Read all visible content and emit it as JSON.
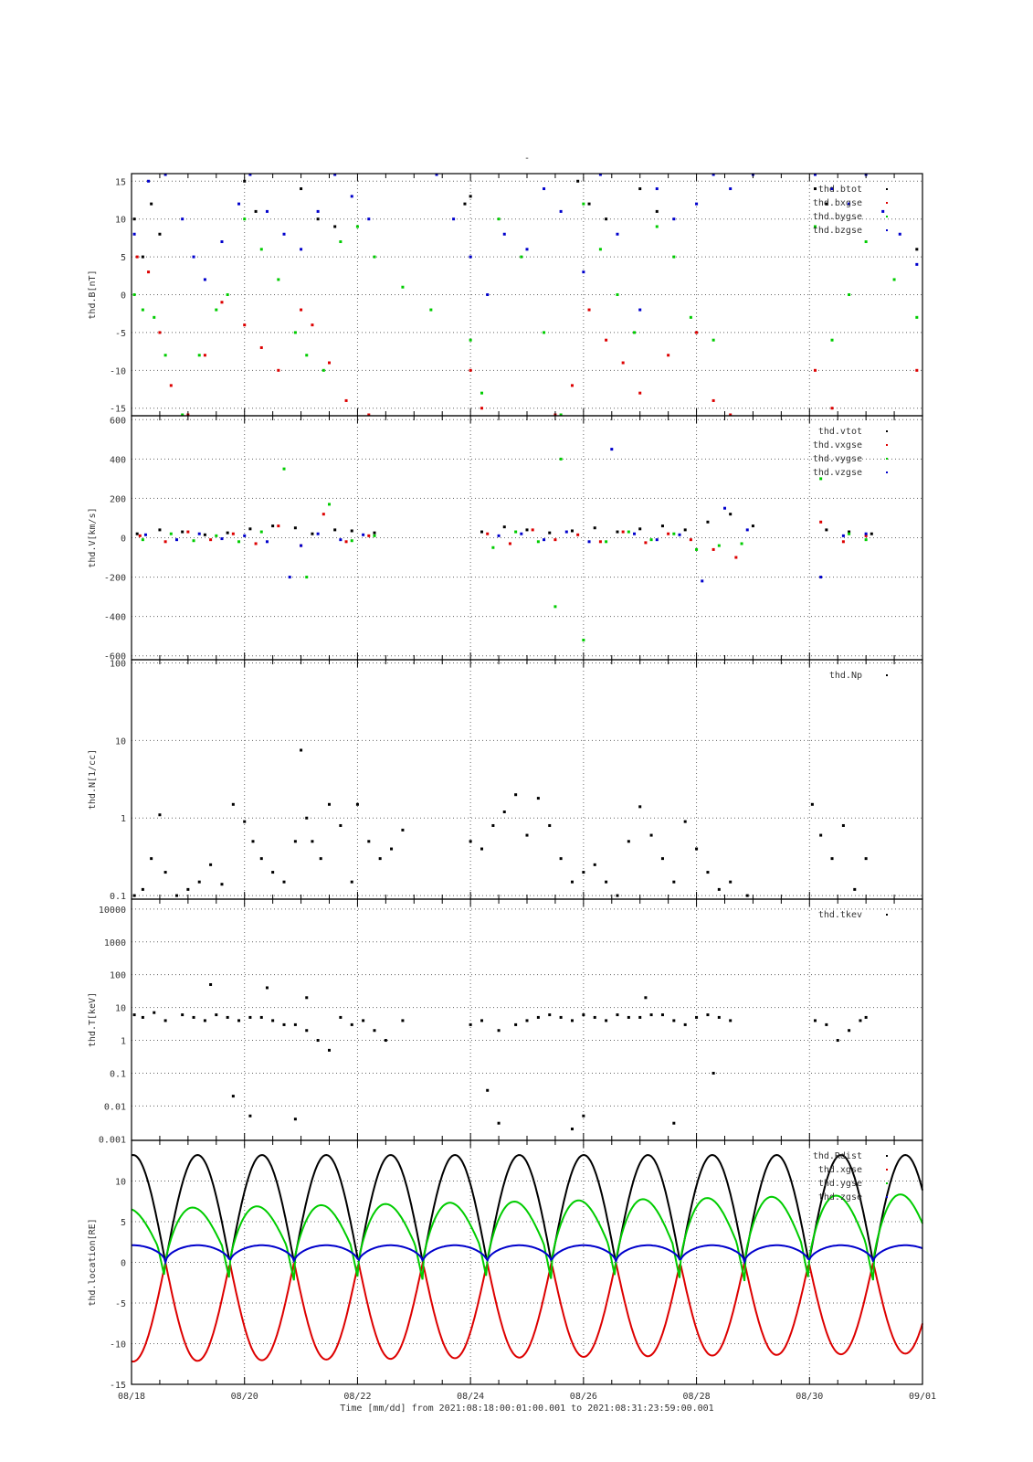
{
  "figure": {
    "title": "-",
    "xlabel": "Time [mm/dd]  from 2021:08:18:00:01:00.001  to  2021:08:31:23:59:00.001",
    "x_tick_labels": [
      "08/18",
      "08/20",
      "08/22",
      "08/24",
      "08/26",
      "08/28",
      "08/30",
      "09/01"
    ]
  },
  "colors": {
    "black": "#000000",
    "red": "#dd0000",
    "green": "#00cc00",
    "blue": "#0000cc",
    "grid": "#666666"
  },
  "chart_data": [
    {
      "type": "scatter",
      "ylabel": "thd.B[nT]",
      "ylim": [
        -16,
        16
      ],
      "yticks": [
        -15,
        -10,
        -5,
        0,
        5,
        10,
        15
      ],
      "xlim": [
        0,
        14
      ],
      "grid": true,
      "legend": "top-right",
      "series": [
        {
          "name": "thd.btot",
          "color": "#000000",
          "x": [
            0.05,
            0.2,
            0.35,
            0.5,
            2.0,
            2.2,
            3.0,
            3.3,
            3.6,
            5.9,
            6.0,
            7.9,
            8.1,
            8.4,
            9.0,
            9.3,
            12.1,
            12.3,
            13.9
          ],
          "y": [
            10,
            5,
            12,
            8,
            15,
            11,
            14,
            10,
            9,
            12,
            13,
            15,
            12,
            10,
            14,
            11,
            14,
            12,
            6
          ]
        },
        {
          "name": "thd.bxgse",
          "color": "#dd0000",
          "x": [
            0.1,
            0.3,
            0.5,
            0.7,
            1.0,
            1.3,
            1.6,
            2.0,
            2.3,
            2.6,
            3.0,
            3.2,
            3.5,
            3.8,
            4.2,
            6.0,
            6.2,
            7.5,
            7.8,
            8.1,
            8.4,
            8.7,
            9.0,
            9.5,
            10.0,
            10.3,
            10.6,
            12.1,
            12.4,
            13.9
          ],
          "y": [
            5,
            3,
            -5,
            -12,
            -16,
            -8,
            -1,
            -4,
            -7,
            -10,
            -2,
            -4,
            -9,
            -14,
            -16,
            -10,
            -15,
            -16,
            -12,
            -2,
            -6,
            -9,
            -13,
            -8,
            -5,
            -14,
            -16,
            -10,
            -15,
            -10
          ]
        },
        {
          "name": "thd.bygse",
          "color": "#00cc00",
          "x": [
            0.05,
            0.2,
            0.4,
            0.6,
            0.9,
            1.2,
            1.5,
            1.7,
            2.0,
            2.3,
            2.6,
            2.9,
            3.1,
            3.4,
            3.7,
            4.0,
            4.3,
            4.8,
            5.3,
            6.0,
            6.2,
            6.5,
            6.9,
            7.3,
            7.6,
            8.0,
            8.3,
            8.6,
            8.9,
            9.3,
            9.6,
            9.9,
            10.3,
            12.1,
            12.4,
            12.7,
            13.0,
            13.5,
            13.9
          ],
          "y": [
            0,
            -2,
            -3,
            -8,
            -16,
            -8,
            -2,
            0,
            10,
            6,
            2,
            -5,
            -8,
            -10,
            7,
            9,
            5,
            1,
            -2,
            -6,
            -13,
            10,
            5,
            -5,
            -16,
            12,
            6,
            0,
            -5,
            9,
            5,
            -3,
            -6,
            9,
            -6,
            0,
            7,
            2,
            -3
          ]
        },
        {
          "name": "thd.bzgse",
          "color": "#0000cc",
          "x": [
            0.05,
            0.3,
            0.6,
            0.9,
            1.1,
            1.3,
            1.6,
            1.9,
            2.1,
            2.4,
            2.7,
            3.0,
            3.3,
            3.6,
            3.9,
            4.2,
            5.4,
            5.7,
            6.0,
            6.3,
            6.6,
            7.0,
            7.3,
            7.6,
            8.0,
            8.3,
            8.6,
            9.0,
            9.3,
            9.6,
            10.0,
            10.3,
            10.6,
            11.0,
            12.1,
            12.4,
            12.7,
            13.0,
            13.3,
            13.6,
            13.9
          ],
          "y": [
            8,
            15,
            16,
            10,
            5,
            2,
            7,
            12,
            16,
            11,
            8,
            6,
            11,
            16,
            13,
            10,
            16,
            10,
            5,
            0,
            8,
            6,
            14,
            11,
            3,
            16,
            8,
            -2,
            14,
            10,
            12,
            16,
            14,
            16,
            16,
            14,
            12,
            16,
            11,
            8,
            4
          ]
        }
      ]
    },
    {
      "type": "scatter",
      "ylabel": "thd.V[km/s]",
      "ylim": [
        -620,
        620
      ],
      "yticks": [
        -600,
        -400,
        -200,
        0,
        200,
        400,
        600
      ],
      "xlim": [
        0,
        14
      ],
      "grid": true,
      "legend": "top-right",
      "series": [
        {
          "name": "thd.vtot",
          "color": "#000000",
          "x": [
            0.1,
            0.5,
            0.9,
            1.3,
            1.7,
            2.1,
            2.5,
            2.9,
            3.2,
            3.6,
            3.9,
            4.3,
            6.2,
            6.6,
            7.0,
            7.4,
            7.8,
            8.2,
            8.6,
            9.0,
            9.4,
            9.8,
            10.2,
            10.6,
            11.0,
            12.3,
            12.7,
            13.1
          ],
          "y": [
            20,
            40,
            30,
            15,
            25,
            45,
            60,
            50,
            20,
            40,
            35,
            25,
            30,
            55,
            40,
            25,
            35,
            50,
            30,
            45,
            60,
            40,
            80,
            120,
            60,
            40,
            30,
            20
          ]
        },
        {
          "name": "thd.vxgse",
          "color": "#dd0000",
          "x": [
            0.15,
            0.6,
            1.0,
            1.4,
            1.8,
            2.2,
            2.6,
            3.0,
            3.4,
            3.8,
            4.2,
            6.3,
            6.7,
            7.1,
            7.5,
            7.9,
            8.3,
            8.7,
            9.1,
            9.5,
            9.9,
            10.3,
            10.7,
            12.2,
            12.6,
            13.0
          ],
          "y": [
            10,
            -20,
            30,
            -10,
            20,
            -30,
            60,
            -40,
            120,
            -20,
            10,
            20,
            -30,
            40,
            -10,
            15,
            -20,
            30,
            -25,
            20,
            -10,
            -60,
            -100,
            80,
            -20,
            10
          ]
        },
        {
          "name": "thd.vygse",
          "color": "#00cc00",
          "x": [
            0.2,
            0.7,
            1.1,
            1.5,
            1.9,
            2.3,
            2.7,
            3.1,
            3.5,
            3.9,
            4.3,
            6.4,
            6.8,
            7.2,
            7.6,
            8.0,
            7.5,
            8.4,
            8.8,
            9.2,
            9.6,
            10.0,
            10.4,
            10.8,
            12.2,
            12.7,
            13.0
          ],
          "y": [
            -10,
            20,
            -15,
            10,
            -20,
            30,
            350,
            -200,
            170,
            -15,
            10,
            -50,
            30,
            -20,
            400,
            -520,
            -350,
            -20,
            30,
            -10,
            20,
            -60,
            -40,
            -30,
            300,
            20,
            -10
          ]
        },
        {
          "name": "thd.vzgse",
          "color": "#0000cc",
          "x": [
            0.25,
            0.8,
            1.2,
            1.6,
            2.0,
            2.4,
            2.8,
            3.0,
            3.3,
            3.7,
            4.1,
            6.5,
            6.9,
            7.3,
            7.7,
            8.1,
            8.5,
            8.9,
            9.3,
            9.7,
            10.1,
            10.5,
            10.9,
            12.2,
            12.6,
            13.0
          ],
          "y": [
            15,
            -10,
            20,
            -5,
            10,
            -20,
            -200,
            -40,
            20,
            -10,
            15,
            10,
            20,
            -10,
            30,
            -20,
            450,
            20,
            -10,
            15,
            -220,
            150,
            40,
            -200,
            10,
            20
          ]
        }
      ]
    },
    {
      "type": "scatter",
      "ylabel": "thd.N[1/cc]",
      "yscale": "log",
      "ylim": [
        0.09,
        110
      ],
      "yticks": [
        0.1,
        1,
        10,
        100
      ],
      "ytick_labels": [
        "0.1",
        "1",
        "10",
        "100"
      ],
      "xlim": [
        0,
        14
      ],
      "grid": true,
      "legend": "top-right",
      "series": [
        {
          "name": "thd.Np",
          "color": "#000000",
          "x": [
            0.05,
            0.2,
            0.35,
            0.5,
            0.6,
            0.8,
            1.0,
            1.2,
            1.4,
            1.6,
            1.8,
            2.0,
            2.15,
            2.3,
            2.5,
            2.7,
            2.9,
            3.0,
            3.1,
            3.2,
            3.35,
            3.5,
            3.7,
            3.9,
            4.0,
            4.2,
            4.4,
            4.6,
            4.8,
            6.0,
            6.2,
            6.4,
            6.6,
            6.8,
            7.0,
            7.2,
            7.4,
            7.6,
            7.8,
            8.0,
            8.2,
            8.4,
            8.6,
            8.8,
            9.0,
            9.2,
            9.4,
            9.6,
            9.8,
            10.0,
            10.2,
            10.4,
            10.6,
            10.9,
            12.05,
            12.2,
            12.4,
            12.6,
            12.8,
            13.0
          ],
          "y": [
            0.1,
            0.12,
            0.3,
            1.1,
            0.2,
            0.1,
            0.12,
            0.15,
            0.25,
            0.14,
            1.5,
            0.9,
            0.5,
            0.3,
            0.2,
            0.15,
            0.5,
            7.5,
            1.0,
            0.5,
            0.3,
            1.5,
            0.8,
            0.15,
            1.5,
            0.5,
            0.3,
            0.4,
            0.7,
            0.5,
            0.4,
            0.8,
            1.2,
            2.0,
            0.6,
            1.8,
            0.8,
            0.3,
            0.15,
            0.2,
            0.25,
            0.15,
            0.1,
            0.5,
            1.4,
            0.6,
            0.3,
            0.15,
            0.9,
            0.4,
            0.2,
            0.12,
            0.15,
            0.1,
            1.5,
            0.6,
            0.3,
            0.8,
            0.12,
            0.3
          ]
        }
      ]
    },
    {
      "type": "scatter",
      "ylabel": "thd.T[keV]",
      "yscale": "log",
      "ylim": [
        0.0009,
        20000
      ],
      "yticks": [
        0.001,
        0.01,
        0.1,
        1,
        10,
        100,
        1000,
        10000
      ],
      "ytick_labels": [
        "0.001",
        "0.01",
        "0.1",
        "1",
        "10",
        "100",
        "1000",
        "10000"
      ],
      "xlim": [
        0,
        14
      ],
      "grid": true,
      "legend": "top-right",
      "series": [
        {
          "name": "thd.tkev",
          "color": "#000000",
          "x": [
            0.05,
            0.2,
            0.4,
            0.6,
            0.9,
            1.1,
            1.3,
            1.5,
            1.7,
            1.9,
            2.1,
            2.3,
            2.5,
            2.7,
            2.9,
            3.1,
            3.3,
            3.5,
            3.7,
            3.9,
            4.1,
            4.3,
            4.5,
            4.8,
            6.0,
            6.2,
            6.5,
            6.8,
            7.0,
            7.2,
            7.4,
            7.6,
            7.8,
            8.0,
            8.2,
            8.4,
            8.6,
            8.8,
            9.0,
            9.2,
            9.4,
            9.6,
            9.8,
            10.0,
            10.2,
            10.4,
            10.6,
            12.1,
            12.3,
            12.5,
            12.7,
            12.9,
            13.0,
            1.4,
            1.8,
            2.1,
            2.4,
            2.9,
            3.1,
            6.3,
            6.5,
            7.8,
            8.0,
            9.1,
            9.6,
            10.3
          ],
          "y": [
            6,
            5,
            7,
            4,
            6,
            5,
            4,
            6,
            5,
            4,
            5,
            5,
            4,
            3,
            3,
            2,
            1,
            0.5,
            5,
            3,
            4,
            2,
            1,
            4,
            3,
            4,
            2,
            3,
            4,
            5,
            6,
            5,
            4,
            6,
            5,
            4,
            6,
            5,
            5,
            6,
            6,
            4,
            3,
            5,
            6,
            5,
            4,
            4,
            3,
            1,
            2,
            4,
            5,
            50,
            0.02,
            0.005,
            40,
            0.004,
            20,
            0.03,
            0.003,
            0.002,
            0.005,
            20,
            0.003,
            0.1
          ]
        }
      ]
    },
    {
      "type": "line",
      "ylabel": "thd.location[RE]",
      "ylim": [
        -15,
        15
      ],
      "yticks": [
        -15,
        -10,
        -5,
        0,
        5,
        10
      ],
      "xlim": [
        0,
        14
      ],
      "grid": true,
      "legend": "top-right",
      "period_days": 1.1389,
      "t0_days": 0.6,
      "series": [
        {
          "name": "thd.Rdist",
          "color": "#000000",
          "apogee": 13.2,
          "perigee": 0
        },
        {
          "name": "thd.xgse",
          "color": "#dd0000",
          "apogee_start": -12.2,
          "apogee_end": -11.2
        },
        {
          "name": "thd.ygse",
          "color": "#00cc00",
          "apogee_start": 6.6,
          "apogee_end": 8.4,
          "dip": -2.3
        },
        {
          "name": "thd.zgse",
          "color": "#0000cc",
          "apogee": 2.1
        }
      ]
    }
  ]
}
